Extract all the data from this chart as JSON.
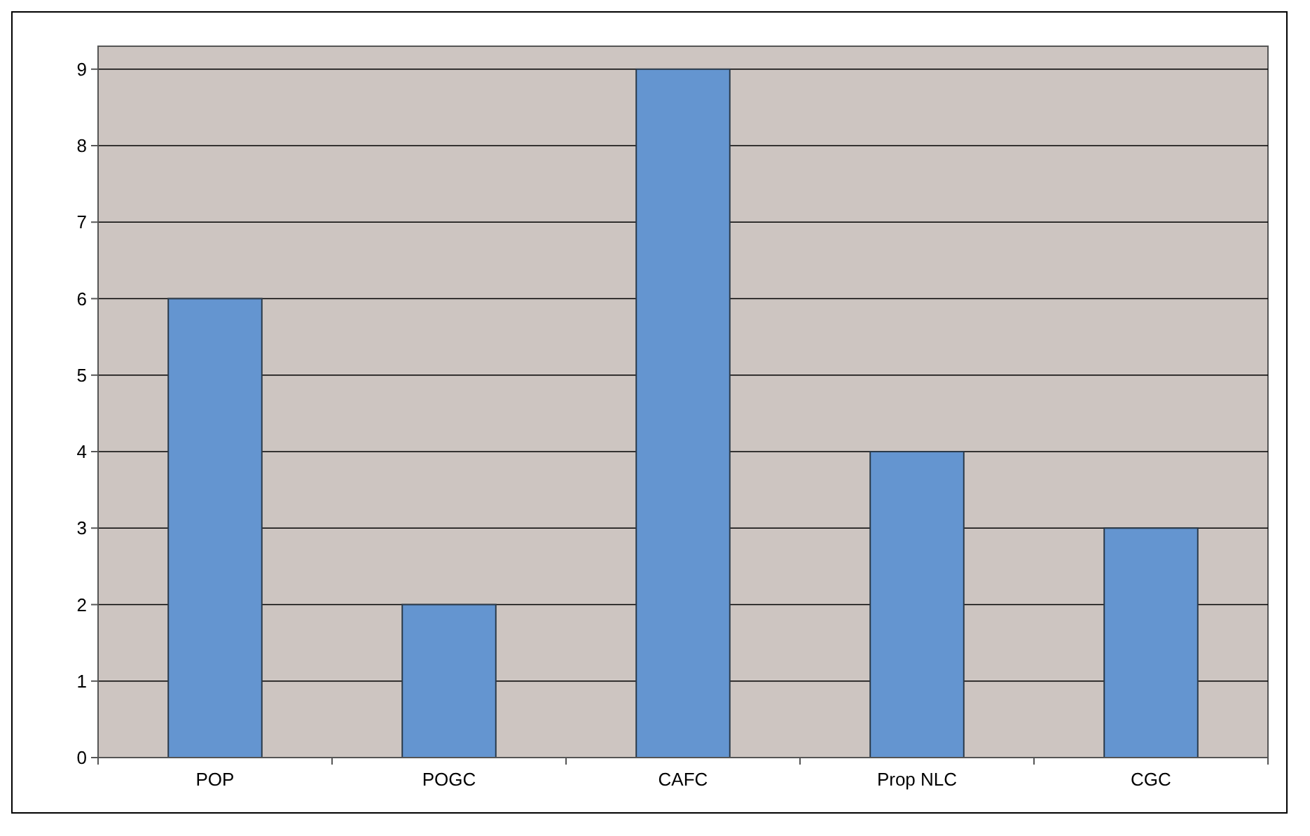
{
  "chart_data": {
    "type": "bar",
    "categories": [
      "POP",
      "POGC",
      "CAFC",
      "Prop NLC",
      "CGC"
    ],
    "values": [
      6,
      2,
      9,
      4,
      3
    ],
    "color": "#6495d0",
    "ylim": [
      0,
      9.3
    ],
    "yticks": [
      0,
      1,
      2,
      3,
      4,
      5,
      6,
      7,
      8,
      9
    ],
    "grid": "y"
  }
}
